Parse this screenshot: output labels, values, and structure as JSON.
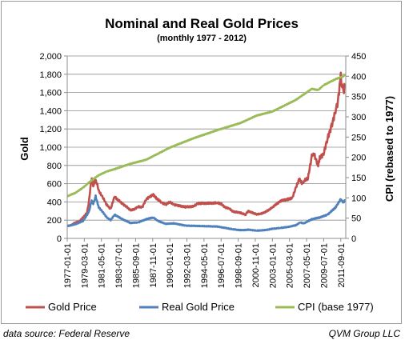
{
  "chart_data": {
    "type": "line",
    "title": "Nominal and Real Gold Prices",
    "subtitle": "(monthly 1977 - 2012)",
    "ylabel_left": "Gold",
    "ylabel_right": "CPI (rebased to 1977)",
    "ylim_left": [
      0,
      2000
    ],
    "ylim_right": [
      0,
      450
    ],
    "yticks_left": [
      "0",
      "200",
      "400",
      "600",
      "800",
      "1,000",
      "1,200",
      "1,400",
      "1,600",
      "1,800",
      "2,000"
    ],
    "yticks_right": [
      "0",
      "50",
      "100",
      "150",
      "200",
      "250",
      "300",
      "350",
      "400",
      "450"
    ],
    "xlim": [
      1977.0,
      2012.3
    ],
    "xticks": [
      "1977-01-01",
      "1979-03-01",
      "1981-05-01",
      "1983-07-01",
      "1985-09-01",
      "1987-11-01",
      "1990-01-01",
      "1992-03-01",
      "1994-05-01",
      "1996-07-01",
      "1998-09-01",
      "2000-11-01",
      "2003-01-01",
      "2005-03-01",
      "2007-05-01",
      "2009-07-01",
      "2011-09-01"
    ],
    "grid": true,
    "legend_position": "bottom",
    "series": [
      {
        "name": "Gold Price",
        "axis": "left",
        "color": "#c0504d",
        "x": [
          1977.0,
          1977.5,
          1978.0,
          1978.5,
          1979.0,
          1979.5,
          1979.75,
          1980.0,
          1980.1,
          1980.3,
          1980.5,
          1980.75,
          1981.0,
          1981.5,
          1982.0,
          1982.5,
          1983.0,
          1983.3,
          1983.6,
          1984.0,
          1984.5,
          1985.0,
          1985.5,
          1986.0,
          1986.5,
          1987.0,
          1987.5,
          1987.9,
          1988.3,
          1989.0,
          1989.5,
          1990.0,
          1990.5,
          1991.0,
          1992.0,
          1993.0,
          1993.5,
          1994.0,
          1995.0,
          1996.0,
          1996.5,
          1997.0,
          1997.5,
          1998.0,
          1999.0,
          1999.6,
          1999.9,
          2000.5,
          2001.0,
          2001.5,
          2002.0,
          2002.5,
          2003.0,
          2004.0,
          2005.0,
          2005.5,
          2006.0,
          2006.4,
          2006.8,
          2007.0,
          2007.5,
          2008.0,
          2008.2,
          2008.8,
          2009.0,
          2009.5,
          2010.0,
          2010.5,
          2011.0,
          2011.3,
          2011.67,
          2011.8,
          2011.9,
          2012.0,
          2012.2
        ],
        "y": [
          135,
          145,
          175,
          185,
          230,
          280,
          400,
          600,
          675,
          560,
          640,
          610,
          520,
          450,
          370,
          320,
          460,
          430,
          410,
          380,
          350,
          310,
          320,
          350,
          340,
          430,
          460,
          480,
          440,
          390,
          370,
          400,
          370,
          360,
          345,
          350,
          380,
          385,
          385,
          390,
          380,
          340,
          330,
          295,
          280,
          260,
          300,
          280,
          265,
          270,
          285,
          310,
          340,
          410,
          430,
          440,
          560,
          650,
          600,
          630,
          660,
          900,
          940,
          800,
          880,
          930,
          1100,
          1230,
          1400,
          1500,
          1780,
          1700,
          1650,
          1600,
          1700
        ]
      },
      {
        "name": "Real Gold Price",
        "axis": "left",
        "color": "#4f81bd",
        "x": [
          1977.0,
          1978.0,
          1979.0,
          1979.75,
          1980.1,
          1980.3,
          1980.6,
          1981.0,
          1981.5,
          1982.0,
          1982.5,
          1983.0,
          1984.0,
          1985.0,
          1986.0,
          1987.0,
          1987.9,
          1988.5,
          1989.5,
          1990.5,
          1992.0,
          1994.0,
          1996.0,
          1997.0,
          1998.0,
          1999.0,
          2000.0,
          2001.0,
          2002.0,
          2003.0,
          2004.0,
          2005.0,
          2006.0,
          2006.5,
          2007.0,
          2008.0,
          2009.0,
          2010.0,
          2011.0,
          2011.67,
          2011.8,
          2012.0,
          2012.2
        ],
        "y": [
          135,
          155,
          190,
          290,
          420,
          380,
          460,
          340,
          290,
          230,
          200,
          260,
          210,
          170,
          175,
          210,
          230,
          190,
          160,
          165,
          140,
          135,
          130,
          115,
          100,
          90,
          95,
          85,
          90,
          105,
          115,
          125,
          145,
          175,
          165,
          210,
          230,
          260,
          340,
          430,
          410,
          400,
          415
        ]
      },
      {
        "name": "CPI (base 1977)",
        "axis": "right",
        "color": "#9bbb59",
        "x": [
          1977.0,
          1978.0,
          1979.0,
          1980.0,
          1981.0,
          1982.0,
          1983.0,
          1985.0,
          1987.0,
          1990.0,
          1993.0,
          1996.0,
          1999.0,
          2001.0,
          2003.0,
          2006.0,
          2008.0,
          2008.8,
          2009.5,
          2011.0,
          2012.0,
          2012.2
        ],
        "y": [
          104,
          112,
          125,
          142,
          156,
          165,
          171,
          184,
          194,
          224,
          247,
          267,
          285,
          303,
          313,
          342,
          369,
          366,
          378,
          393,
          400,
          405
        ]
      }
    ]
  },
  "footer": {
    "source": "data source: Federal Reserve",
    "credit": "QVM Group LLC"
  }
}
